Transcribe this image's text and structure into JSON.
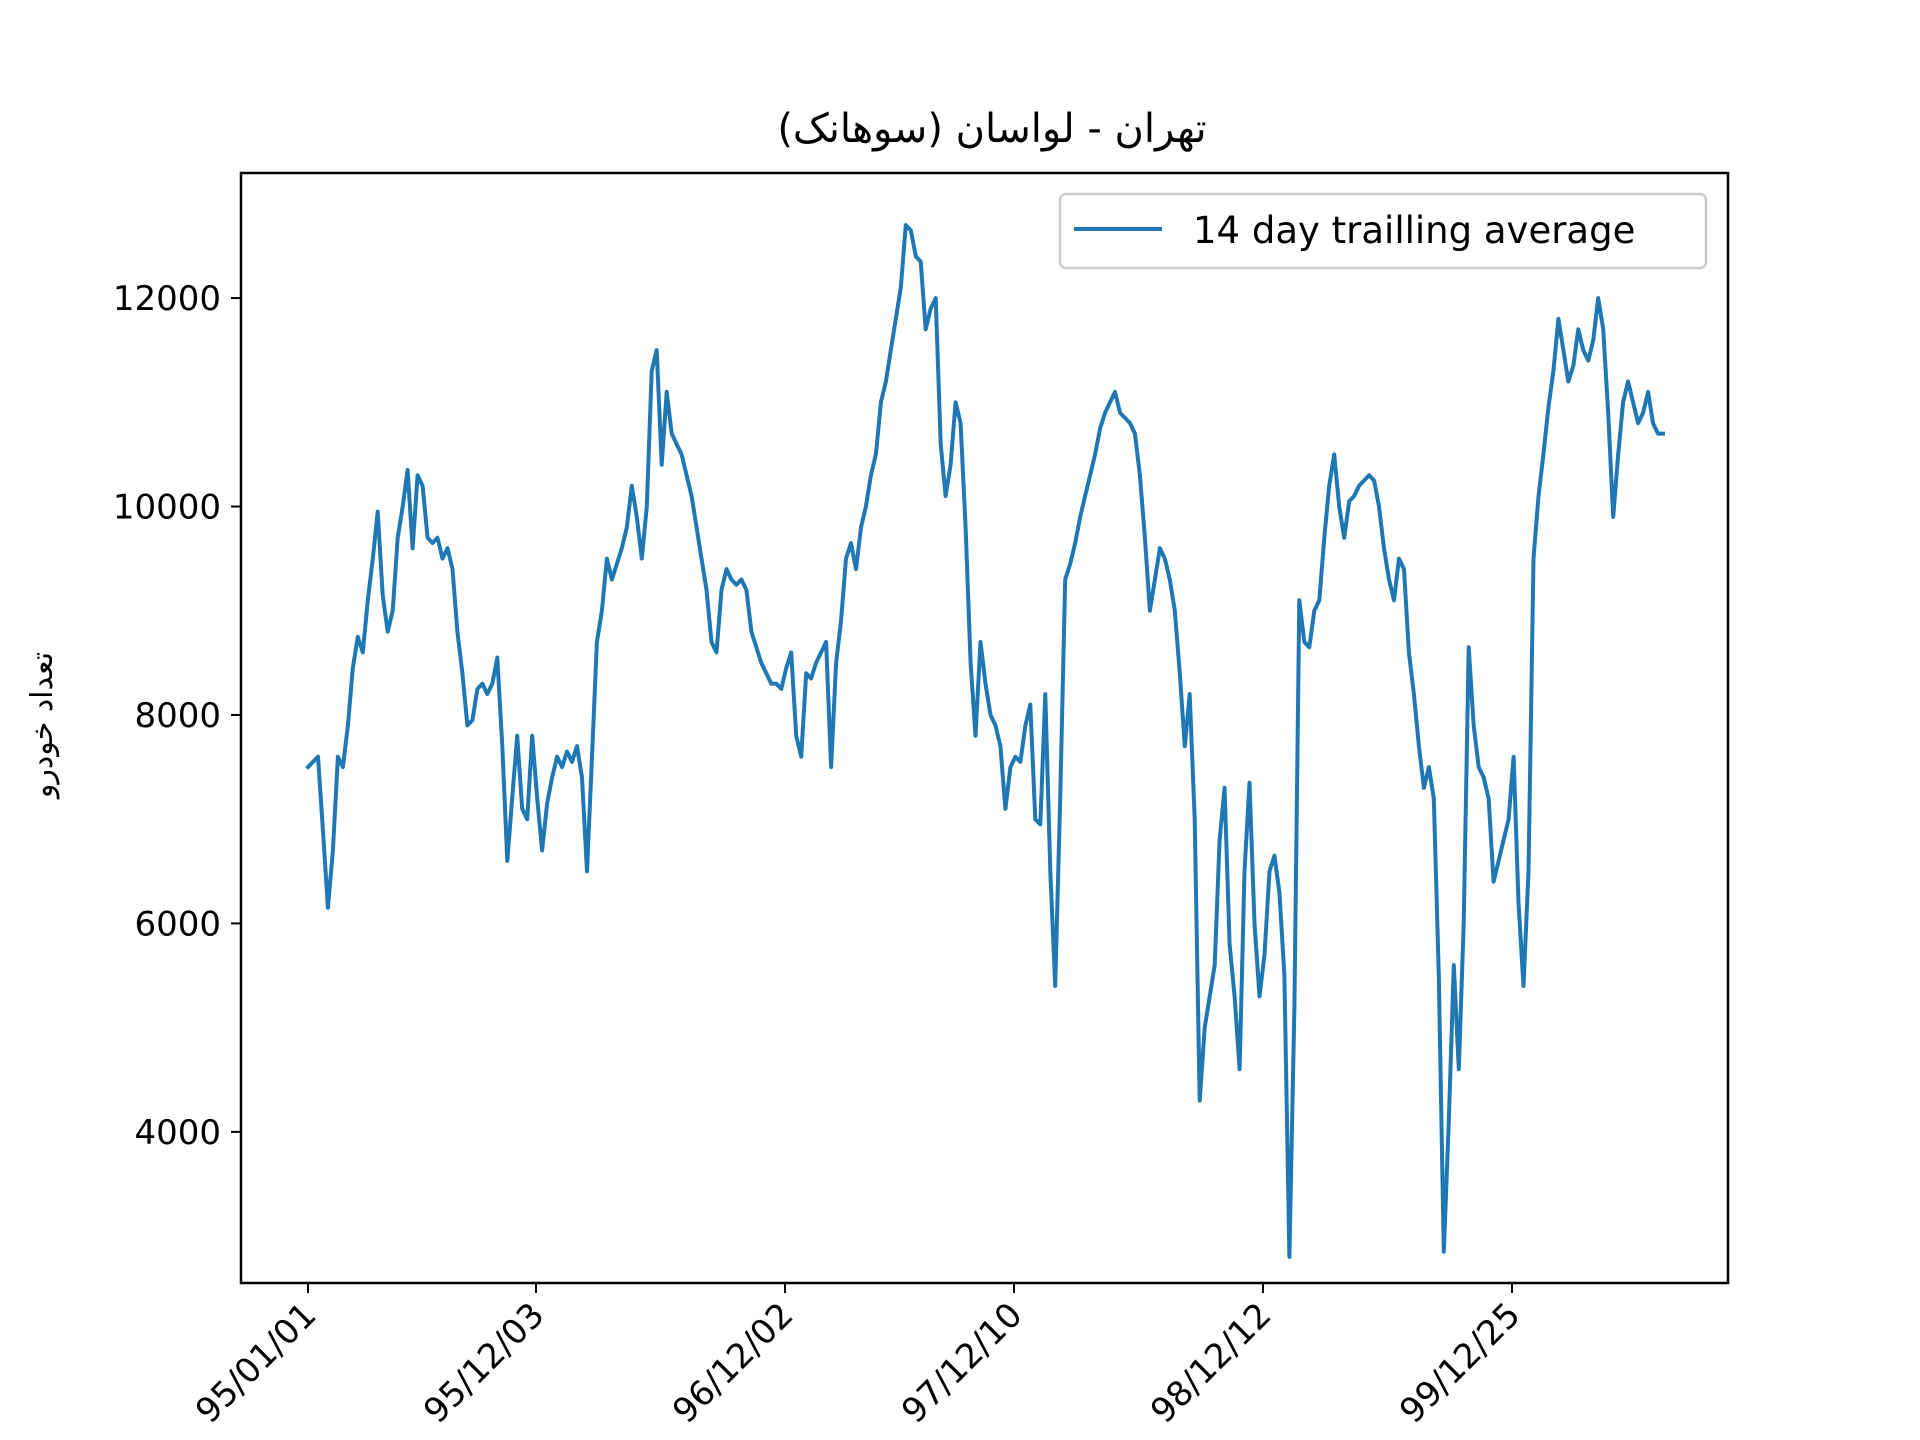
{
  "chart_data": {
    "type": "line",
    "title": "تهران - لواسان (سوهانک)",
    "xlabel": "",
    "ylabel": "تعداد خودرو",
    "x_tick_labels": [
      "95/01/01",
      "95/12/03",
      "96/12/02",
      "97/12/10",
      "98/12/12",
      "99/12/25"
    ],
    "y_ticks": [
      4000,
      6000,
      8000,
      10000,
      12000
    ],
    "ylim": [
      2550,
      13200
    ],
    "grid": false,
    "legend": {
      "placement": "top-right"
    },
    "series": [
      {
        "name": "14 day trailling average",
        "color": "#1f77b4",
        "values": [
          7500,
          7550,
          7600,
          6900,
          6150,
          6700,
          7600,
          7500,
          7900,
          8450,
          8750,
          8600,
          9100,
          9500,
          9950,
          9150,
          8800,
          9000,
          9700,
          10000,
          10350,
          9600,
          10300,
          10200,
          9700,
          9650,
          9700,
          9500,
          9600,
          9400,
          8800,
          8400,
          7900,
          7950,
          8250,
          8300,
          8200,
          8300,
          8550,
          7700,
          6600,
          7200,
          7800,
          7100,
          7000,
          7800,
          7200,
          6700,
          7150,
          7400,
          7600,
          7500,
          7650,
          7550,
          7700,
          7400,
          6500,
          7600,
          8700,
          9000,
          9500,
          9300,
          9450,
          9600,
          9800,
          10200,
          9900,
          9500,
          10000,
          11300,
          11500,
          10400,
          11100,
          10700,
          10600,
          10500,
          10300,
          10100,
          9800,
          9500,
          9200,
          8700,
          8600,
          9200,
          9400,
          9300,
          9250,
          9300,
          9200,
          8800,
          8650,
          8500,
          8400,
          8300,
          8300,
          8250,
          8450,
          8600,
          7800,
          7600,
          8400,
          8350,
          8500,
          8600,
          8700,
          7500,
          8500,
          8900,
          9500,
          9650,
          9400,
          9800,
          10000,
          10300,
          10500,
          11000,
          11200,
          11500,
          11800,
          12100,
          12700,
          12650,
          12400,
          12350,
          11700,
          11900,
          12000,
          10600,
          10100,
          10400,
          11000,
          10800,
          9800,
          8500,
          7800,
          8700,
          8300,
          8000,
          7900,
          7700,
          7100,
          7500,
          7600,
          7550,
          7900,
          8100,
          7000,
          6950,
          8200,
          6500,
          5400,
          7200,
          9300,
          9450,
          9650,
          9900,
          10100,
          10300,
          10500,
          10750,
          10900,
          11000,
          11100,
          10900,
          10850,
          10800,
          10700,
          10300,
          9700,
          9000,
          9300,
          9600,
          9500,
          9300,
          9000,
          8400,
          7700,
          8200,
          7000,
          4300,
          5000,
          5300,
          5600,
          6800,
          7300,
          5800,
          5300,
          4600,
          6500,
          7350,
          6000,
          5300,
          5700,
          6500,
          6650,
          6300,
          5500,
          2800,
          5200,
          9100,
          8700,
          8650,
          9000,
          9100,
          9700,
          10200,
          10500,
          10000,
          9700,
          10050,
          10100,
          10200,
          10250,
          10300,
          10250,
          10000,
          9600,
          9300,
          9100,
          9500,
          9400,
          8600,
          8200,
          7700,
          7300,
          7500,
          7200,
          5500,
          2850,
          4100,
          5600,
          4600,
          6000,
          8650,
          7900,
          7500,
          7400,
          7200,
          6400,
          6600,
          6800,
          7000,
          7600,
          6200,
          5400,
          6500,
          9500,
          10100,
          10500,
          10950,
          11300,
          11800,
          11500,
          11200,
          11350,
          11700,
          11500,
          11400,
          11600,
          12000,
          11700,
          10900,
          9900,
          10500,
          11000,
          11200,
          11000,
          10800,
          10900,
          11100,
          10800,
          10700,
          10700
        ]
      }
    ]
  }
}
